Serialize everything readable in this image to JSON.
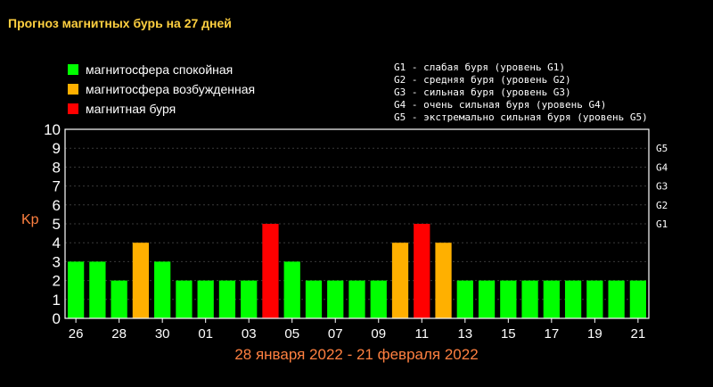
{
  "title": "Прогноз магнитных бурь на 27 дней",
  "legend": [
    {
      "label": "магнитосфера спокойная",
      "color": "#00ff00"
    },
    {
      "label": "магнитосфера возбужденная",
      "color": "#ffb000"
    },
    {
      "label": "магнитная буря",
      "color": "#ff0000"
    }
  ],
  "g_scale_notes": [
    "G1 - слабая буря (уровень G1)",
    "G2 - средняя буря (уровень G2)",
    "G3 - сильная буря (уровень G3)",
    "G4 - очень сильная буря (уровень G4)",
    "G5 - экстремально сильная буря (уровень G5)"
  ],
  "date_range": "28 января 2022 - 21 февраля 2022",
  "chart_data": {
    "type": "bar",
    "title": "Прогноз магнитных бурь на 27 дней",
    "ylabel": "Kp",
    "xlabel": "28 января 2022 - 21 февраля 2022",
    "ylim": [
      0,
      10
    ],
    "yticks": [
      "0",
      "1",
      "2",
      "3",
      "4",
      "5",
      "6",
      "7",
      "8",
      "9",
      "10"
    ],
    "right_ticks": [
      {
        "label": "G1",
        "y": 5
      },
      {
        "label": "G2",
        "y": 6
      },
      {
        "label": "G3",
        "y": 7
      },
      {
        "label": "G4",
        "y": 8
      },
      {
        "label": "G5",
        "y": 9
      }
    ],
    "xtick_labels": [
      "26",
      "28",
      "30",
      "01",
      "03",
      "05",
      "07",
      "09",
      "11",
      "13",
      "15",
      "17",
      "19",
      "21"
    ],
    "values": [
      3,
      3,
      2,
      4,
      3,
      2,
      2,
      2,
      2,
      5,
      3,
      2,
      2,
      2,
      2,
      4,
      5,
      4,
      2,
      2,
      2,
      2,
      2,
      2,
      2,
      2,
      2
    ],
    "colors": {
      "quiet": "#00ff00",
      "active": "#ffb000",
      "storm": "#ff0000"
    },
    "grid": true
  }
}
